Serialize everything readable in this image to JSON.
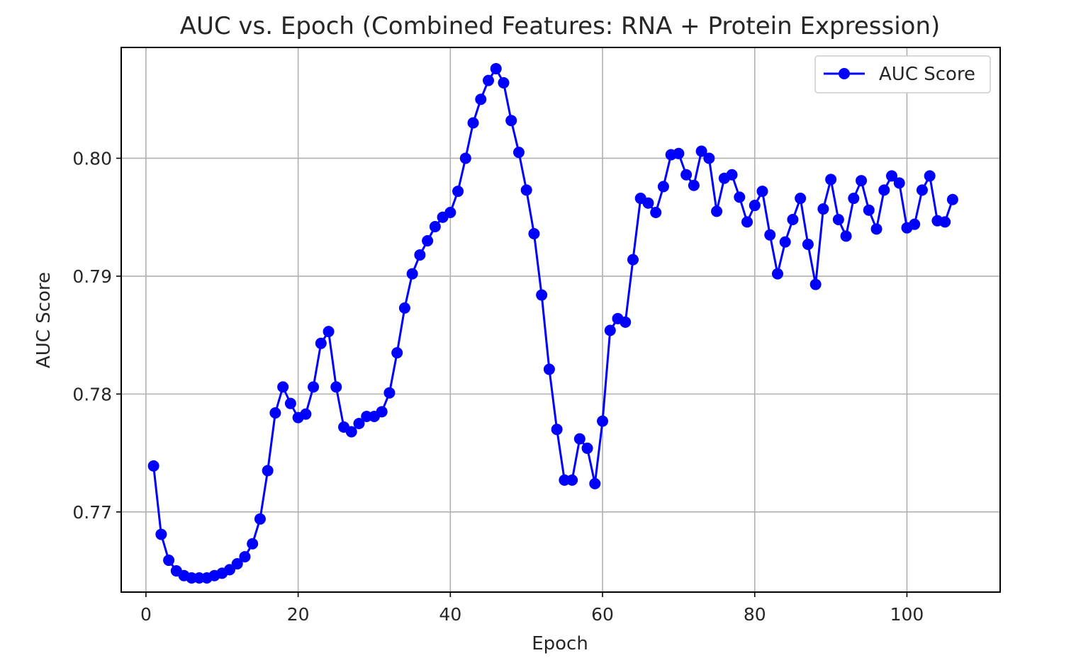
{
  "chart_data": {
    "type": "line",
    "title": "AUC vs. Epoch (Combined Features: RNA + Protein Expression)",
    "xlabel": "Epoch",
    "ylabel": "AUC Score",
    "xlim": [
      -3.25,
      112.25
    ],
    "ylim": [
      0.7632,
      0.8094
    ],
    "xticks": [
      0,
      20,
      40,
      60,
      80,
      100
    ],
    "yticks": [
      0.77,
      0.78,
      0.79,
      0.8
    ],
    "xtick_labels": [
      "0",
      "20",
      "40",
      "60",
      "80",
      "100"
    ],
    "ytick_labels": [
      "0.77",
      "0.78",
      "0.79",
      "0.80"
    ],
    "grid": true,
    "legend": {
      "position": "top-right",
      "entries": [
        "AUC Score"
      ]
    },
    "series": [
      {
        "name": "AUC Score",
        "color": "#0000ff",
        "marker": "circle",
        "x": [
          1,
          2,
          3,
          4,
          5,
          6,
          7,
          8,
          9,
          10,
          11,
          12,
          13,
          14,
          15,
          16,
          17,
          18,
          19,
          20,
          21,
          22,
          23,
          24,
          25,
          26,
          27,
          28,
          29,
          30,
          31,
          32,
          33,
          34,
          35,
          36,
          37,
          38,
          39,
          40,
          41,
          42,
          43,
          44,
          45,
          46,
          47,
          48,
          49,
          50,
          51,
          52,
          53,
          54,
          55,
          56,
          57,
          58,
          59,
          60,
          61,
          62,
          63,
          64,
          65,
          66,
          67,
          68,
          69,
          70,
          71,
          72,
          73,
          74,
          75,
          76,
          77,
          78,
          79,
          80,
          81,
          82,
          83,
          84,
          85,
          86,
          87,
          88,
          89,
          90,
          91,
          92,
          93,
          94,
          95,
          96,
          97,
          98,
          99,
          100,
          101,
          102,
          103,
          104,
          105,
          106
        ],
        "values": [
          0.7739,
          0.7681,
          0.7659,
          0.765,
          0.7646,
          0.7644,
          0.7644,
          0.7644,
          0.7646,
          0.7648,
          0.7651,
          0.7656,
          0.7662,
          0.7673,
          0.7694,
          0.7735,
          0.7784,
          0.7806,
          0.7792,
          0.778,
          0.7783,
          0.7806,
          0.7843,
          0.7853,
          0.7806,
          0.7772,
          0.7768,
          0.7775,
          0.7781,
          0.7781,
          0.7785,
          0.7801,
          0.7835,
          0.7873,
          0.7902,
          0.7918,
          0.793,
          0.7942,
          0.795,
          0.7954,
          0.7972,
          0.8,
          0.803,
          0.805,
          0.8066,
          0.8076,
          0.8064,
          0.8032,
          0.8005,
          0.7973,
          0.7936,
          0.7884,
          0.7821,
          0.777,
          0.7727,
          0.7727,
          0.7762,
          0.7754,
          0.7724,
          0.7777,
          0.7854,
          0.7864,
          0.7861,
          0.7914,
          0.7966,
          0.7962,
          0.7954,
          0.7976,
          0.8003,
          0.8004,
          0.7986,
          0.7977,
          0.8006,
          0.8,
          0.7955,
          0.7983,
          0.7986,
          0.7967,
          0.7946,
          0.796,
          0.7972,
          0.7935,
          0.7902,
          0.7929,
          0.7948,
          0.7966,
          0.7927,
          0.7893,
          0.7957,
          0.7982,
          0.7948,
          0.7934,
          0.7966,
          0.7981,
          0.7956,
          0.794,
          0.7973,
          0.7985,
          0.7979,
          0.7941,
          0.7944,
          0.7973,
          0.7985,
          0.7947,
          0.7946,
          0.7965
        ]
      }
    ]
  }
}
